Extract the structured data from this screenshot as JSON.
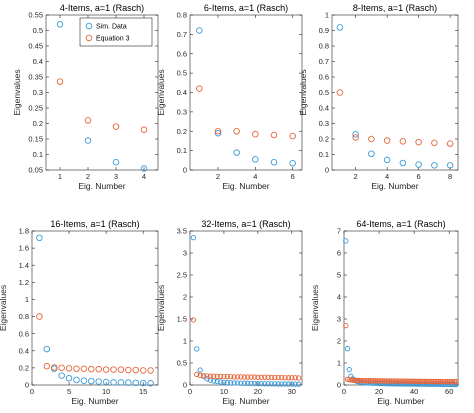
{
  "colors": {
    "sim": "#3a9ad9",
    "eq": "#e8653a",
    "axis": "#262626"
  },
  "legend": {
    "entries": [
      "Sim. Data",
      "Equation 3"
    ],
    "placement": "top-right of first panel"
  },
  "chart_data": [
    {
      "type": "scatter",
      "title": "4-Items, a=1 (Rasch)",
      "xlabel": "Eig. Number",
      "ylabel": "Eigenvalues",
      "xlim": [
        0.5,
        4.5
      ],
      "ylim": [
        0.05,
        0.55
      ],
      "xticks": [
        1,
        2,
        3,
        4
      ],
      "yticks": [
        0.05,
        0.1,
        0.15,
        0.2,
        0.25,
        0.3,
        0.35,
        0.4,
        0.45,
        0.5,
        0.55
      ],
      "ytick_labels": [
        "0.05",
        "0.1",
        "0.15",
        "0.2",
        "0.25",
        "0.3",
        "0.35",
        "0.4",
        "0.45",
        "0.5",
        "0.55"
      ],
      "series": [
        {
          "name": "Sim. Data",
          "x": [
            1,
            2,
            3,
            4
          ],
          "y": [
            0.52,
            0.145,
            0.075,
            0.055
          ]
        },
        {
          "name": "Equation 3",
          "x": [
            1,
            2,
            3,
            4
          ],
          "y": [
            0.335,
            0.21,
            0.19,
            0.18
          ]
        }
      ]
    },
    {
      "type": "scatter",
      "title": "6-Items, a=1 (Rasch)",
      "xlabel": "Eig. Number",
      "ylabel": "Eigenvalues",
      "xlim": [
        0.5,
        6.5
      ],
      "ylim": [
        0,
        0.8
      ],
      "xticks": [
        2,
        4,
        6
      ],
      "yticks": [
        0,
        0.1,
        0.2,
        0.3,
        0.4,
        0.5,
        0.6,
        0.7,
        0.8
      ],
      "ytick_labels": [
        "0",
        "0.1",
        "0.2",
        "0.3",
        "0.4",
        "0.5",
        "0.6",
        "0.7",
        "0.8"
      ],
      "series": [
        {
          "name": "Sim. Data",
          "x": [
            1,
            2,
            3,
            4,
            5,
            6
          ],
          "y": [
            0.72,
            0.19,
            0.09,
            0.055,
            0.04,
            0.035
          ]
        },
        {
          "name": "Equation 3",
          "x": [
            1,
            2,
            3,
            4,
            5,
            6
          ],
          "y": [
            0.42,
            0.2,
            0.2,
            0.185,
            0.18,
            0.175
          ]
        }
      ]
    },
    {
      "type": "scatter",
      "title": "8-Items, a=1 (Rasch)",
      "xlabel": "Eig. Number",
      "ylabel": "Eigenvalues",
      "xlim": [
        0.5,
        8.5
      ],
      "ylim": [
        0,
        1
      ],
      "xticks": [
        2,
        4,
        6,
        8
      ],
      "yticks": [
        0,
        0.1,
        0.2,
        0.3,
        0.4,
        0.5,
        0.6,
        0.7,
        0.8,
        0.9,
        1
      ],
      "ytick_labels": [
        "0",
        "0.1",
        "0.2",
        "0.3",
        "0.4",
        "0.5",
        "0.6",
        "0.7",
        "0.8",
        "0.9",
        "1"
      ],
      "series": [
        {
          "name": "Sim. Data",
          "x": [
            1,
            2,
            3,
            4,
            5,
            6,
            7,
            8
          ],
          "y": [
            0.92,
            0.23,
            0.105,
            0.065,
            0.045,
            0.035,
            0.03,
            0.03
          ]
        },
        {
          "name": "Equation 3",
          "x": [
            1,
            2,
            3,
            4,
            5,
            6,
            7,
            8
          ],
          "y": [
            0.5,
            0.21,
            0.2,
            0.19,
            0.185,
            0.18,
            0.175,
            0.17
          ]
        }
      ]
    },
    {
      "type": "scatter",
      "title": "16-Items, a=1 (Rasch)",
      "xlabel": "Eig. Number",
      "ylabel": "Eigenvalues",
      "xlim": [
        0,
        17
      ],
      "ylim": [
        0,
        1.8
      ],
      "xticks": [
        0,
        5,
        10,
        15
      ],
      "yticks": [
        0,
        0.2,
        0.4,
        0.6,
        0.8,
        1,
        1.2,
        1.4,
        1.6,
        1.8
      ],
      "ytick_labels": [
        "0",
        "0.2",
        "0.4",
        "0.6",
        "0.8",
        "1",
        "1.2",
        "1.4",
        "1.6",
        "1.8"
      ],
      "series": [
        {
          "name": "Sim. Data",
          "x": [
            1,
            2,
            3,
            4,
            5,
            6,
            7,
            8,
            9,
            10,
            11,
            12,
            13,
            14,
            15,
            16
          ],
          "y": [
            1.72,
            0.42,
            0.19,
            0.11,
            0.08,
            0.06,
            0.05,
            0.045,
            0.04,
            0.035,
            0.03,
            0.03,
            0.028,
            0.025,
            0.022,
            0.02
          ]
        },
        {
          "name": "Equation 3",
          "x": [
            1,
            2,
            3,
            4,
            5,
            6,
            7,
            8,
            9,
            10,
            11,
            12,
            13,
            14,
            15,
            16
          ],
          "y": [
            0.8,
            0.22,
            0.205,
            0.2,
            0.195,
            0.19,
            0.19,
            0.185,
            0.185,
            0.18,
            0.18,
            0.18,
            0.175,
            0.175,
            0.17,
            0.17
          ]
        }
      ]
    },
    {
      "type": "scatter",
      "title": "32-Items, a=1 (Rasch)",
      "xlabel": "Eig. Number",
      "ylabel": "Eigenvalues",
      "xlim": [
        0,
        33
      ],
      "ylim": [
        0,
        3.5
      ],
      "xticks": [
        0,
        10,
        20,
        30
      ],
      "yticks": [
        0,
        0.5,
        1,
        1.5,
        2,
        2.5,
        3,
        3.5
      ],
      "ytick_labels": [
        "0",
        "0.5",
        "1",
        "1.5",
        "2",
        "2.5",
        "3",
        "3.5"
      ],
      "series": [
        {
          "name": "Sim. Data",
          "x": [
            1,
            2,
            3,
            4,
            5,
            6,
            7,
            8,
            9,
            10,
            11,
            12,
            13,
            14,
            15,
            16,
            17,
            18,
            19,
            20,
            21,
            22,
            23,
            24,
            25,
            26,
            27,
            28,
            29,
            30,
            31,
            32
          ],
          "y": [
            3.35,
            0.82,
            0.34,
            0.2,
            0.14,
            0.11,
            0.09,
            0.08,
            0.07,
            0.06,
            0.055,
            0.05,
            0.048,
            0.045,
            0.042,
            0.04,
            0.038,
            0.036,
            0.034,
            0.032,
            0.03,
            0.028,
            0.027,
            0.026,
            0.025,
            0.024,
            0.023,
            0.022,
            0.021,
            0.02,
            0.019,
            0.018
          ]
        },
        {
          "name": "Equation 3",
          "x": [
            1,
            2,
            3,
            4,
            5,
            6,
            7,
            8,
            9,
            10,
            11,
            12,
            13,
            14,
            15,
            16,
            17,
            18,
            19,
            20,
            21,
            22,
            23,
            24,
            25,
            26,
            27,
            28,
            29,
            30,
            31,
            32
          ],
          "y": [
            1.48,
            0.24,
            0.22,
            0.21,
            0.205,
            0.2,
            0.2,
            0.195,
            0.195,
            0.19,
            0.19,
            0.19,
            0.185,
            0.185,
            0.185,
            0.18,
            0.18,
            0.18,
            0.18,
            0.175,
            0.175,
            0.175,
            0.175,
            0.17,
            0.17,
            0.17,
            0.17,
            0.165,
            0.165,
            0.165,
            0.165,
            0.16
          ]
        }
      ]
    },
    {
      "type": "scatter",
      "title": "64-Items, a=1 (Rasch)",
      "xlabel": "Eig. Number",
      "ylabel": "Eigenvalues",
      "xlim": [
        0,
        65
      ],
      "ylim": [
        0,
        7
      ],
      "xticks": [
        0,
        20,
        40,
        60
      ],
      "yticks": [
        0,
        1,
        2,
        3,
        4,
        5,
        6,
        7
      ],
      "ytick_labels": [
        "0",
        "1",
        "2",
        "3",
        "4",
        "5",
        "6",
        "7"
      ],
      "series": [
        {
          "name": "Sim. Data",
          "x": [
            1,
            2,
            3,
            4,
            5,
            6,
            7,
            8,
            9,
            10,
            11,
            12,
            13,
            14,
            15,
            16,
            17,
            18,
            19,
            20,
            21,
            22,
            23,
            24,
            25,
            26,
            27,
            28,
            29,
            30,
            31,
            32,
            33,
            34,
            35,
            36,
            37,
            38,
            39,
            40,
            41,
            42,
            43,
            44,
            45,
            46,
            47,
            48,
            49,
            50,
            51,
            52,
            53,
            54,
            55,
            56,
            57,
            58,
            59,
            60,
            61,
            62,
            63,
            64
          ],
          "y": [
            6.55,
            1.65,
            0.7,
            0.4,
            0.28,
            0.22,
            0.18,
            0.16,
            0.14,
            0.13,
            0.12,
            0.11,
            0.1,
            0.095,
            0.09,
            0.085,
            0.08,
            0.078,
            0.075,
            0.072,
            0.07,
            0.068,
            0.066,
            0.064,
            0.062,
            0.06,
            0.058,
            0.056,
            0.055,
            0.054,
            0.053,
            0.052,
            0.051,
            0.05,
            0.049,
            0.048,
            0.047,
            0.046,
            0.045,
            0.044,
            0.043,
            0.042,
            0.041,
            0.04,
            0.04,
            0.039,
            0.038,
            0.037,
            0.036,
            0.035,
            0.035,
            0.034,
            0.033,
            0.032,
            0.031,
            0.03,
            0.03,
            0.029,
            0.028,
            0.027,
            0.026,
            0.025,
            0.024,
            0.023
          ]
        },
        {
          "name": "Equation 3",
          "x": [
            1,
            2,
            3,
            4,
            5,
            6,
            7,
            8,
            9,
            10,
            11,
            12,
            13,
            14,
            15,
            16,
            17,
            18,
            19,
            20,
            21,
            22,
            23,
            24,
            25,
            26,
            27,
            28,
            29,
            30,
            31,
            32,
            33,
            34,
            35,
            36,
            37,
            38,
            39,
            40,
            41,
            42,
            43,
            44,
            45,
            46,
            47,
            48,
            49,
            50,
            51,
            52,
            53,
            54,
            55,
            56,
            57,
            58,
            59,
            60,
            61,
            62,
            63,
            64
          ],
          "y": [
            2.7,
            0.26,
            0.24,
            0.23,
            0.22,
            0.215,
            0.21,
            0.21,
            0.205,
            0.2,
            0.2,
            0.2,
            0.195,
            0.195,
            0.195,
            0.19,
            0.19,
            0.19,
            0.19,
            0.185,
            0.185,
            0.185,
            0.185,
            0.185,
            0.18,
            0.18,
            0.18,
            0.18,
            0.18,
            0.175,
            0.175,
            0.175,
            0.175,
            0.175,
            0.175,
            0.17,
            0.17,
            0.17,
            0.17,
            0.17,
            0.17,
            0.165,
            0.165,
            0.165,
            0.165,
            0.165,
            0.165,
            0.165,
            0.16,
            0.16,
            0.16,
            0.16,
            0.16,
            0.16,
            0.16,
            0.155,
            0.155,
            0.155,
            0.155,
            0.155,
            0.155,
            0.155,
            0.15,
            0.15
          ]
        }
      ]
    }
  ]
}
